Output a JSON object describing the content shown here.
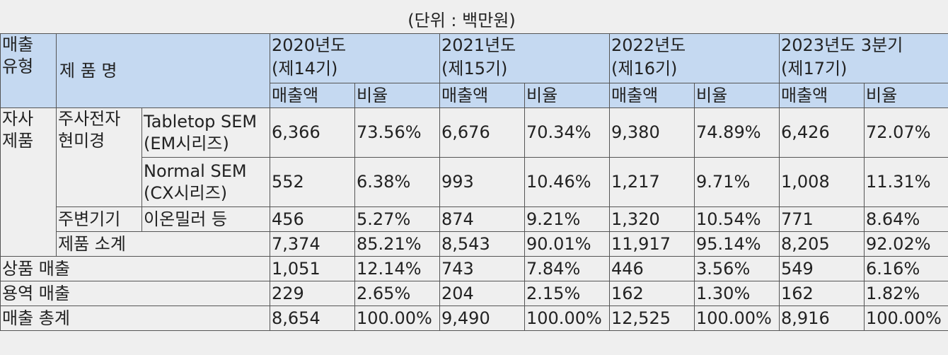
{
  "unit_note": "(단위 : 백만원)",
  "header": {
    "sales_type": [
      "매출",
      "유형"
    ],
    "product_name": "제 품 명",
    "years": [
      {
        "label": "2020년도",
        "period": "(제14기)"
      },
      {
        "label": "2021년도",
        "period": "(제15기)"
      },
      {
        "label": "2022년도",
        "period": "(제16기)"
      },
      {
        "label": "2023년도 3분기",
        "period": "(제17기)"
      }
    ],
    "amount": "매출액",
    "ratio": "비율"
  },
  "groups": {
    "own_products": [
      "자사",
      "제품"
    ],
    "sem": [
      "주사전자",
      "현미경"
    ],
    "peripheral": "주변기기",
    "subtotal": "제품 소계"
  },
  "rows": {
    "tabletop": {
      "name": [
        "Tabletop SEM",
        "(EM시리즈)"
      ],
      "cells": [
        "6,366",
        "73.56%",
        "6,676",
        "70.34%",
        "9,380",
        "74.89%",
        "6,426",
        "72.07%"
      ]
    },
    "normal": {
      "name": [
        "Normal SEM",
        "(CX시리즈)"
      ],
      "cells": [
        "552",
        "6.38%",
        "993",
        "10.46%",
        "1,217",
        "9.71%",
        "1,008",
        "11.31%"
      ]
    },
    "ion": {
      "name": "이온밀러 등",
      "cells": [
        "456",
        "5.27%",
        "874",
        "9.21%",
        "1,320",
        "10.54%",
        "771",
        "8.64%"
      ]
    },
    "subtotal": {
      "cells": [
        "7,374",
        "85.21%",
        "8,543",
        "90.01%",
        "11,917",
        "95.14%",
        "8,205",
        "92.02%"
      ]
    },
    "goods": {
      "name": "상품 매출",
      "cells": [
        "1,051",
        "12.14%",
        "743",
        "7.84%",
        "446",
        "3.56%",
        "549",
        "6.16%"
      ]
    },
    "service": {
      "name": "용역 매출",
      "cells": [
        "229",
        "2.65%",
        "204",
        "2.15%",
        "162",
        "1.30%",
        "162",
        "1.82%"
      ]
    },
    "total": {
      "name": "매출 총계",
      "cells": [
        "8,654",
        "100.00%",
        "9,490",
        "100.00%",
        "12,525",
        "100.00%",
        "8,916",
        "100.00%"
      ]
    }
  }
}
